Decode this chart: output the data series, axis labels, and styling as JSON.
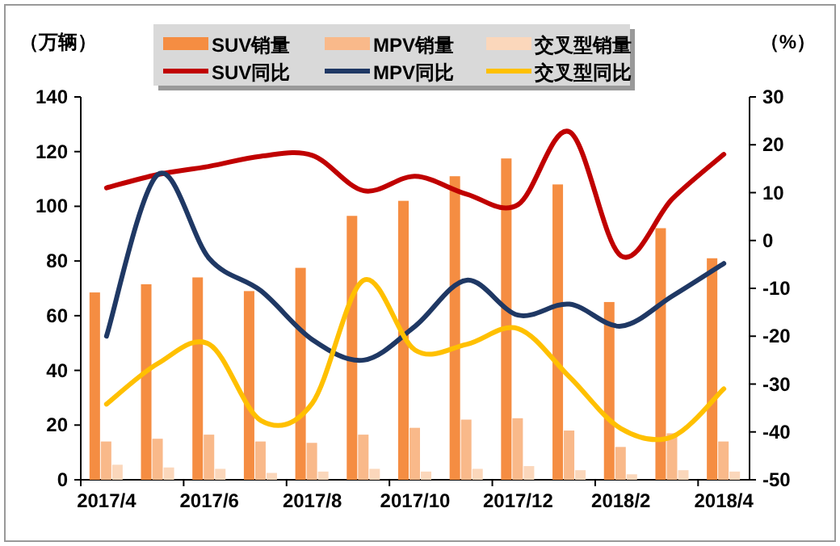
{
  "chart_data": {
    "type": "bar",
    "ylabel": "（万辆）",
    "y2label": "（%）",
    "categories": [
      "2017/4",
      null,
      "2017/6",
      null,
      "2017/8",
      null,
      "2017/10",
      null,
      "2017/12",
      null,
      "2018/2",
      null,
      "2018/4"
    ],
    "series": [
      {
        "name": "SUV销量",
        "color": "#f58d42",
        "values": [
          68.5,
          71.5,
          74,
          69,
          77.5,
          96.5,
          102,
          111,
          117.5,
          108,
          65,
          92,
          81
        ]
      },
      {
        "name": "MPV销量",
        "color": "#f9b98a",
        "values": [
          14,
          15,
          16.5,
          14,
          13.5,
          16.5,
          19,
          22,
          22.5,
          18,
          12,
          17,
          14
        ]
      },
      {
        "name": "交叉型销量",
        "color": "#fbd7bb",
        "values": [
          5.5,
          4.5,
          4,
          2.5,
          3,
          4,
          3,
          4,
          5,
          3.5,
          2,
          3.5,
          3
        ]
      },
      {
        "name": "SUV同比",
        "type": "line",
        "axis": "y2",
        "color": "#c00000",
        "values": [
          11,
          13.8,
          15.5,
          17.6,
          17.8,
          10.4,
          13.4,
          9.7,
          7.5,
          22.7,
          -3.2,
          8.7,
          18
        ]
      },
      {
        "name": "MPV同比",
        "type": "line",
        "axis": "y2",
        "color": "#1f3864",
        "values": [
          -20,
          13.8,
          -3.8,
          -10.5,
          -20.7,
          -25,
          -17.9,
          -8.3,
          -15.6,
          -13.3,
          -17.9,
          -11.6,
          -4.8
        ]
      },
      {
        "name": "交叉型同比",
        "type": "line",
        "axis": "y2",
        "color": "#ffc000",
        "values": [
          -34.2,
          -25.7,
          -21.7,
          -37.6,
          -34,
          -8.3,
          -22.9,
          -21.7,
          -18.4,
          -28.5,
          -39.3,
          -41,
          -31
        ]
      }
    ],
    "ylim": [
      0,
      140
    ],
    "yticks": [
      0,
      20,
      40,
      60,
      80,
      100,
      120,
      140
    ],
    "y2lim": [
      -50,
      30
    ],
    "y2ticks": [
      -50,
      -40,
      -30,
      -20,
      -10,
      0,
      10,
      20,
      30
    ],
    "legend": "top",
    "line_style": "solid",
    "marker": "none"
  }
}
